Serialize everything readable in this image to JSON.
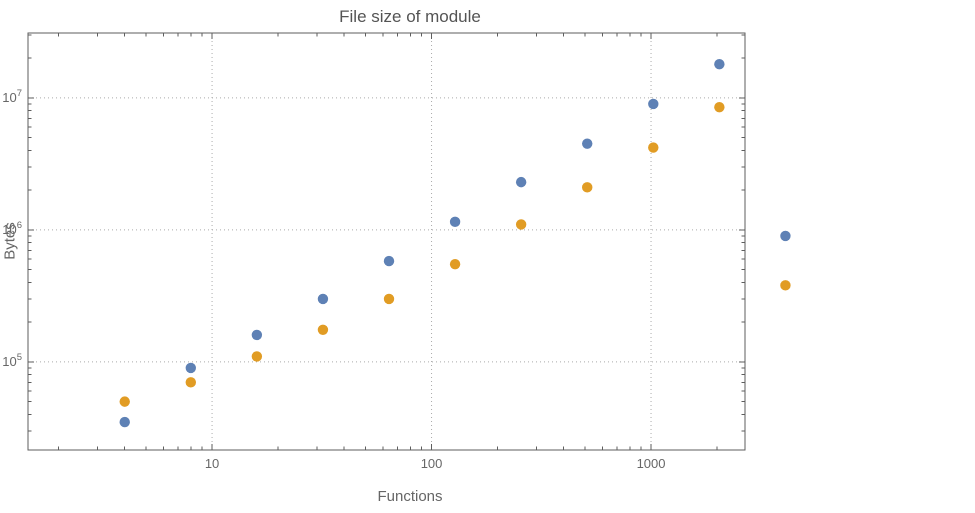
{
  "chart_data": {
    "type": "scatter",
    "title": "File size of module",
    "xlabel": "Functions",
    "ylabel": "Bytes",
    "x_scale": "log",
    "y_scale": "log",
    "grid": "dotted",
    "legend": "none",
    "xlim": [
      1.45,
      2680
    ],
    "ylim": [
      21500,
      31000000
    ],
    "x_ticks": [
      10,
      100,
      1000
    ],
    "x_tick_labels": [
      "10",
      "100",
      "1000"
    ],
    "y_ticks": [
      100000,
      1000000,
      10000000
    ],
    "y_tick_exponents": [
      5,
      6,
      7
    ],
    "x": [
      4,
      8,
      16,
      32,
      64,
      128,
      256,
      512,
      1024,
      2048,
      4096
    ],
    "series": [
      {
        "name": "series-1-blue",
        "color": "#5e81b5",
        "values": [
          35000,
          90000,
          160000,
          300000,
          580000,
          1150000,
          2300000,
          4500000,
          9000000,
          18000000,
          900000
        ]
      },
      {
        "name": "series-2-orange",
        "color": "#e19c24",
        "values": [
          50000,
          70000,
          110000,
          175000,
          300000,
          550000,
          1100000,
          2100000,
          4200000,
          8500000,
          380000
        ]
      }
    ],
    "colors": {
      "frame": "#5e5e5e",
      "grid": "#ababab",
      "tick_label": "#676767",
      "title": "#545454",
      "axis_label": "#666666"
    }
  }
}
